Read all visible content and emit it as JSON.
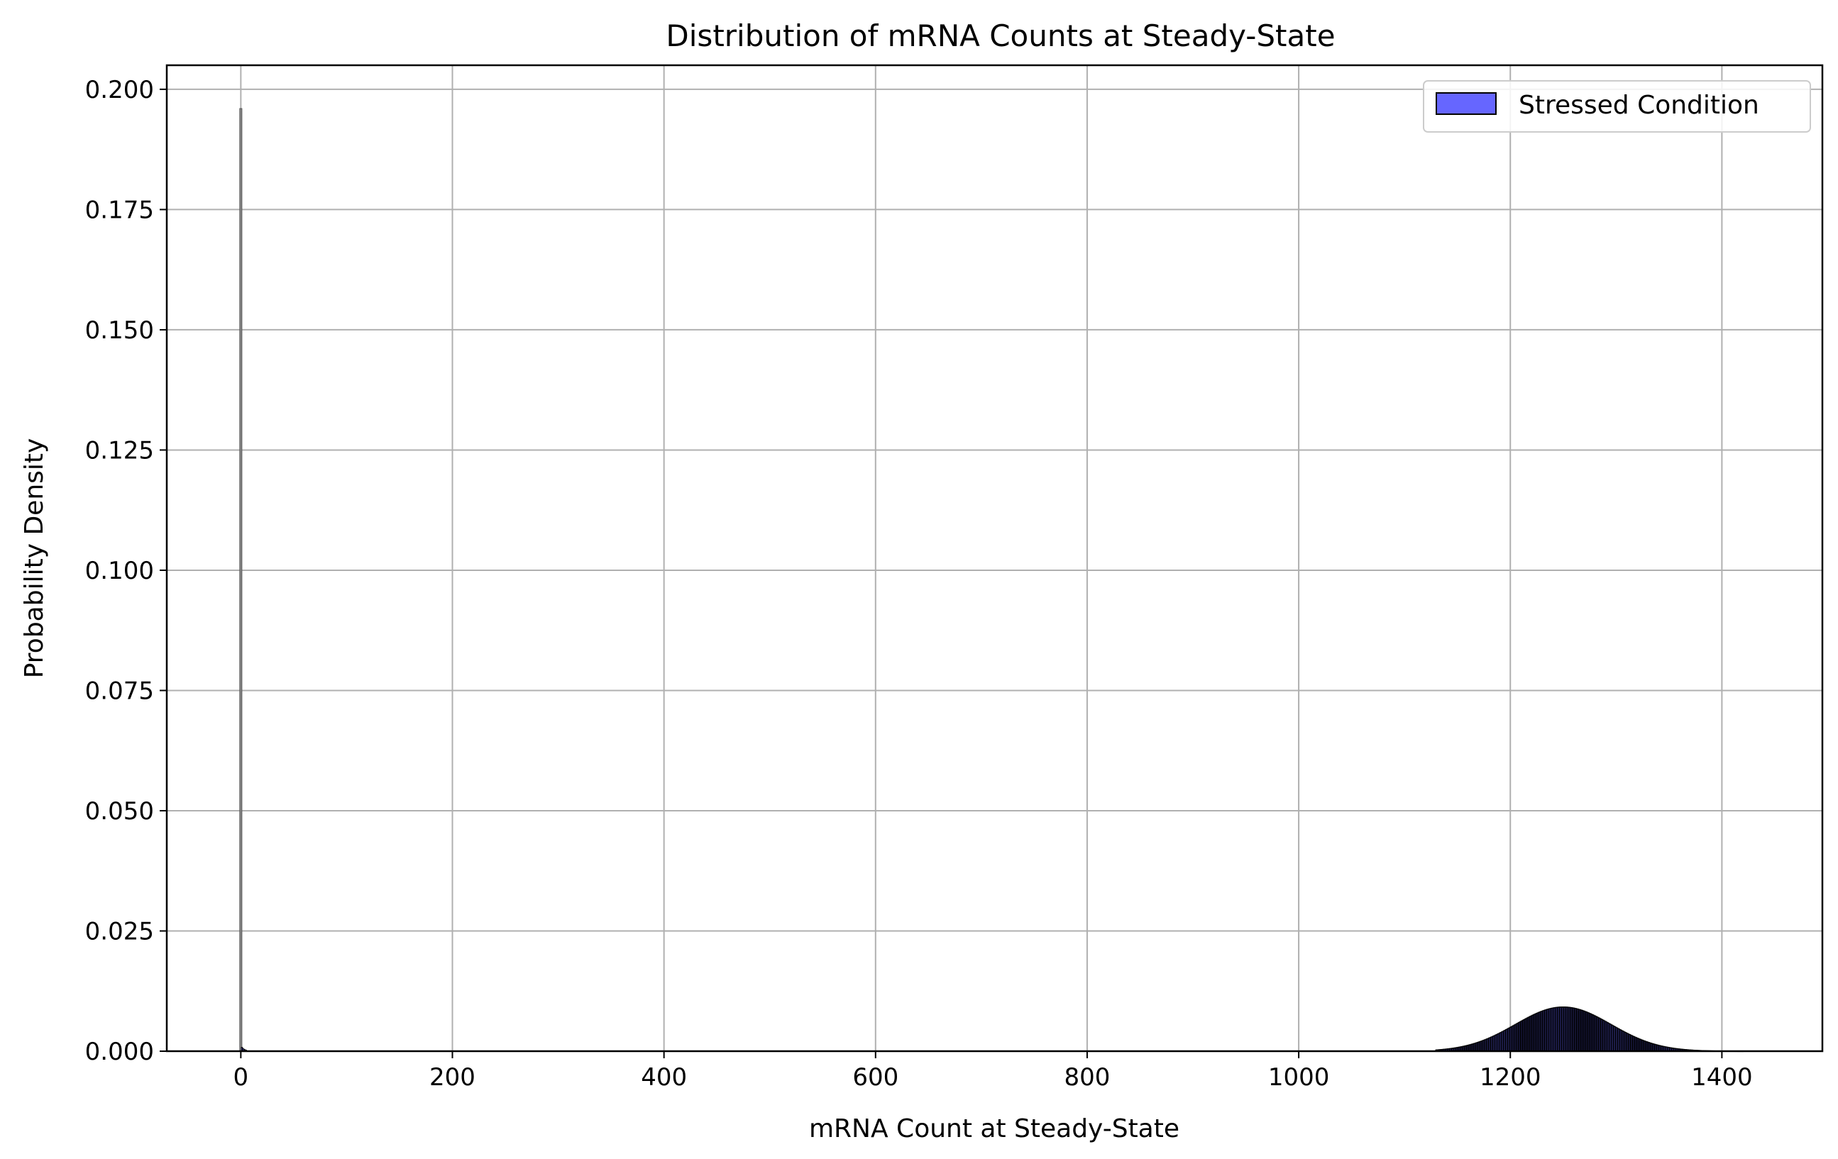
{
  "chart_data": {
    "type": "bar",
    "title": "Distribution of mRNA Counts at Steady-State",
    "xlabel": "mRNA Count at Steady-State",
    "ylabel": "Probability Density",
    "xlim": [
      -70,
      1495
    ],
    "ylim": [
      0,
      0.205
    ],
    "xticks": [
      0,
      200,
      400,
      600,
      800,
      1000,
      1200,
      1400
    ],
    "yticks": [
      0.0,
      0.025,
      0.05,
      0.075,
      0.1,
      0.125,
      0.15,
      0.175,
      0.2
    ],
    "xtick_labels": [
      "0",
      "200",
      "400",
      "600",
      "800",
      "1000",
      "1200",
      "1400"
    ],
    "ytick_labels": [
      "0.000",
      "0.025",
      "0.050",
      "0.075",
      "0.100",
      "0.125",
      "0.150",
      "0.175",
      "0.200"
    ],
    "grid": true,
    "legend_position": "top-right",
    "colors": {
      "bar_fill": "#6666ff",
      "bar_edge": "#000000",
      "grid": "#b0b0b0"
    },
    "series": [
      {
        "name": "Stressed Condition",
        "spike": {
          "x": 0,
          "y": 0.196
        },
        "near_zero_tail": [
          {
            "x": 1,
            "y": 0.0008
          },
          {
            "x": 2,
            "y": 0.0006
          },
          {
            "x": 3,
            "y": 0.0004
          },
          {
            "x": 4,
            "y": 0.0003
          },
          {
            "x": 5,
            "y": 0.0002
          }
        ],
        "main_peak": {
          "mean": 1250,
          "peak_density": 0.0092,
          "x_min": 1130,
          "x_max": 1420
        }
      }
    ]
  }
}
